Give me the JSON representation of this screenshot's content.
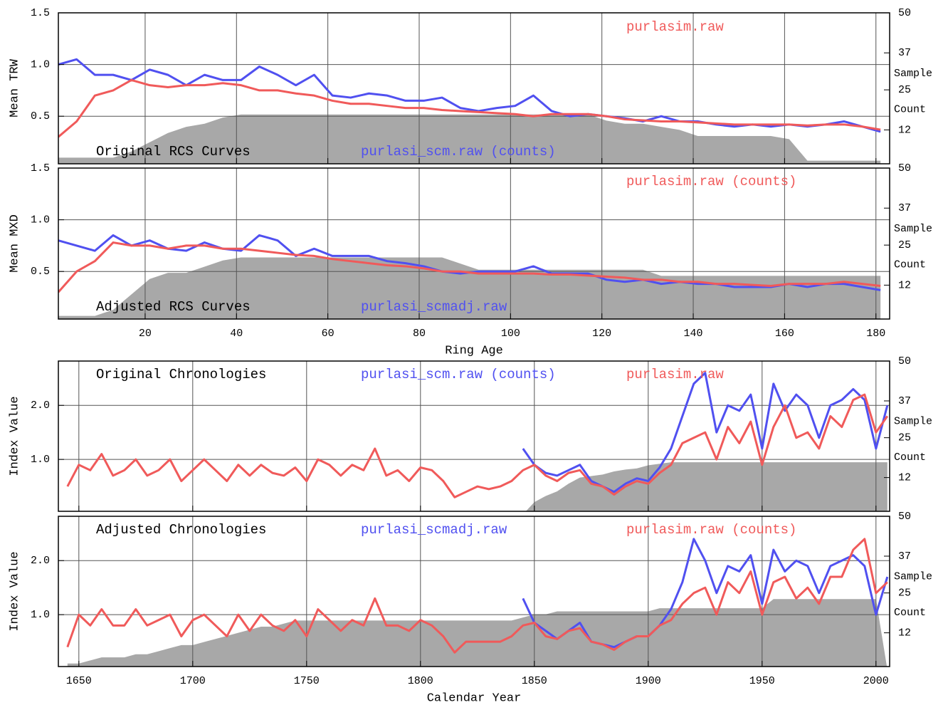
{
  "chart_data": [
    {
      "type": "line",
      "panel_label": "Original RCS Curves",
      "ylabel": "Mean TRW",
      "x": [
        1,
        5,
        9,
        13,
        17,
        21,
        25,
        29,
        33,
        37,
        41,
        45,
        49,
        53,
        57,
        61,
        65,
        69,
        73,
        77,
        81,
        85,
        89,
        93,
        97,
        101,
        105,
        109,
        113,
        117,
        121,
        125,
        129,
        133,
        137,
        141,
        145,
        149,
        153,
        157,
        161,
        165,
        169,
        173,
        177,
        181
      ],
      "series": [
        {
          "name": "purlasi_scm.raw (counts)",
          "color": "#5050f0",
          "values": [
            1.0,
            1.05,
            0.9,
            0.9,
            0.85,
            0.95,
            0.9,
            0.8,
            0.9,
            0.85,
            0.85,
            0.98,
            0.9,
            0.8,
            0.9,
            0.7,
            0.68,
            0.72,
            0.7,
            0.65,
            0.65,
            0.68,
            0.58,
            0.55,
            0.58,
            0.6,
            0.7,
            0.55,
            0.5,
            0.52,
            0.5,
            0.48,
            0.45,
            0.5,
            0.45,
            0.45,
            0.42,
            0.4,
            0.42,
            0.4,
            0.42,
            0.4,
            0.42,
            0.45,
            0.4,
            0.35
          ]
        },
        {
          "name": "purlasim.raw",
          "color": "#f05a5a",
          "values": [
            0.3,
            0.45,
            0.7,
            0.75,
            0.85,
            0.8,
            0.78,
            0.8,
            0.8,
            0.82,
            0.8,
            0.75,
            0.75,
            0.72,
            0.7,
            0.65,
            0.62,
            0.62,
            0.6,
            0.58,
            0.58,
            0.56,
            0.55,
            0.54,
            0.53,
            0.52,
            0.5,
            0.52,
            0.52,
            0.52,
            0.5,
            0.47,
            0.46,
            0.45,
            0.45,
            0.44,
            0.43,
            0.42,
            0.42,
            0.42,
            0.42,
            0.41,
            0.42,
            0.42,
            0.4,
            0.37
          ]
        },
        {
          "color": "#a8a8a8",
          "axis": "y2",
          "fill": true,
          "values": [
            3,
            3,
            3,
            3,
            5,
            8,
            11,
            13,
            14,
            16,
            17,
            17,
            17,
            17,
            17,
            17,
            17,
            17,
            17,
            17,
            17,
            17,
            17,
            17,
            17,
            17,
            17,
            17,
            17,
            17,
            15,
            14,
            14,
            13,
            12,
            10,
            10,
            10,
            10,
            10,
            9,
            2,
            2,
            2,
            2,
            2
          ]
        }
      ],
      "xlim": [
        1,
        183
      ],
      "ylim": [
        0.04,
        1.5
      ],
      "y2lim": [
        1,
        50
      ],
      "xticks": [
        20,
        40,
        60,
        80,
        100,
        120,
        140,
        160,
        180
      ],
      "xtick_labels": false,
      "yticks": [
        0.5,
        {
          "value": 1,
          "label": "1.0"
        },
        1.5
      ],
      "y2ticks": [
        12,
        25,
        37,
        50
      ],
      "y2label_lines": [
        "Sample",
        "Count"
      ],
      "grid": true
    },
    {
      "type": "line",
      "panel_label": "Adjusted RCS Curves",
      "ylabel": "Mean MXD",
      "xlabel": "Ring Age",
      "x": [
        1,
        5,
        9,
        13,
        17,
        21,
        25,
        29,
        33,
        37,
        41,
        45,
        49,
        53,
        57,
        61,
        65,
        69,
        73,
        77,
        81,
        85,
        89,
        93,
        97,
        101,
        105,
        109,
        113,
        117,
        121,
        125,
        129,
        133,
        137,
        141,
        145,
        149,
        153,
        157,
        161,
        165,
        169,
        173,
        177,
        181
      ],
      "series": [
        {
          "name": "purlasi_scmadj.raw",
          "color": "#5050f0",
          "values": [
            0.8,
            0.75,
            0.7,
            0.85,
            0.75,
            0.8,
            0.72,
            0.7,
            0.78,
            0.72,
            0.7,
            0.85,
            0.8,
            0.65,
            0.72,
            0.65,
            0.65,
            0.65,
            0.6,
            0.58,
            0.55,
            0.5,
            0.48,
            0.5,
            0.5,
            0.5,
            0.55,
            0.48,
            0.48,
            0.48,
            0.42,
            0.4,
            0.42,
            0.38,
            0.4,
            0.38,
            0.38,
            0.35,
            0.35,
            0.35,
            0.38,
            0.35,
            0.38,
            0.38,
            0.35,
            0.32
          ]
        },
        {
          "name": "purlasim.raw (counts)",
          "color": "#f05a5a",
          "values": [
            0.3,
            0.5,
            0.6,
            0.78,
            0.75,
            0.75,
            0.72,
            0.75,
            0.75,
            0.72,
            0.72,
            0.7,
            0.68,
            0.66,
            0.65,
            0.62,
            0.6,
            0.58,
            0.56,
            0.55,
            0.53,
            0.5,
            0.5,
            0.48,
            0.48,
            0.48,
            0.48,
            0.47,
            0.47,
            0.46,
            0.45,
            0.44,
            0.42,
            0.42,
            0.4,
            0.4,
            0.38,
            0.38,
            0.37,
            0.36,
            0.38,
            0.38,
            0.38,
            0.4,
            0.38,
            0.36
          ]
        },
        {
          "color": "#a8a8a8",
          "axis": "y2",
          "fill": true,
          "values": [
            2,
            2,
            2,
            4,
            9,
            14,
            16,
            16,
            18,
            20,
            21,
            21,
            21,
            21,
            21,
            21,
            21,
            21,
            21,
            21,
            21,
            21,
            19,
            17,
            17,
            17,
            17,
            17,
            17,
            17,
            17,
            17,
            17,
            15,
            15,
            15,
            15,
            15,
            15,
            15,
            15,
            15,
            15,
            15,
            15,
            15
          ]
        }
      ],
      "xlim": [
        1,
        183
      ],
      "ylim": [
        0.04,
        1.5
      ],
      "y2lim": [
        1,
        50
      ],
      "xticks": [
        20,
        40,
        60,
        80,
        100,
        120,
        140,
        160,
        180
      ],
      "xtick_labels": true,
      "yticks": [
        0.5,
        {
          "value": 1,
          "label": "1.0"
        },
        1.5
      ],
      "y2ticks": [
        12,
        25,
        37,
        50
      ],
      "y2label_lines": [
        "Sample",
        "Count"
      ],
      "grid": true
    },
    {
      "type": "line",
      "panel_label": "Original Chronologies",
      "ylabel": "Index Value",
      "x": [
        1645,
        1650,
        1655,
        1660,
        1665,
        1670,
        1675,
        1680,
        1685,
        1690,
        1695,
        1700,
        1705,
        1710,
        1715,
        1720,
        1725,
        1730,
        1735,
        1740,
        1745,
        1750,
        1755,
        1760,
        1765,
        1770,
        1775,
        1780,
        1785,
        1790,
        1795,
        1800,
        1805,
        1810,
        1815,
        1820,
        1825,
        1830,
        1835,
        1840,
        1845,
        1850,
        1855,
        1860,
        1865,
        1870,
        1875,
        1880,
        1885,
        1890,
        1895,
        1900,
        1905,
        1910,
        1915,
        1920,
        1925,
        1930,
        1935,
        1940,
        1945,
        1950,
        1955,
        1960,
        1965,
        1970,
        1975,
        1980,
        1985,
        1990,
        1995,
        2000,
        2005
      ],
      "series": [
        {
          "name": "purlasi_scm.raw (counts)",
          "color": "#5050f0",
          "values": [
            null,
            null,
            null,
            null,
            null,
            null,
            null,
            null,
            null,
            null,
            null,
            null,
            null,
            null,
            null,
            null,
            null,
            null,
            null,
            null,
            null,
            null,
            null,
            null,
            null,
            null,
            null,
            null,
            null,
            null,
            null,
            null,
            null,
            null,
            null,
            null,
            null,
            null,
            null,
            null,
            1.2,
            0.9,
            0.75,
            0.7,
            0.8,
            0.9,
            0.6,
            0.5,
            0.4,
            0.55,
            0.65,
            0.6,
            0.85,
            1.2,
            1.8,
            2.4,
            2.6,
            1.5,
            2.0,
            1.9,
            2.2,
            1.2,
            2.4,
            1.9,
            2.2,
            2.0,
            1.4,
            2.0,
            2.1,
            2.3,
            2.1,
            1.2,
            2.0
          ]
        },
        {
          "name": "purlasim.raw",
          "color": "#f05a5a",
          "values": [
            0.5,
            0.9,
            0.8,
            1.1,
            0.7,
            0.8,
            1.0,
            0.7,
            0.8,
            1.0,
            0.6,
            0.8,
            1.0,
            0.8,
            0.6,
            0.9,
            0.7,
            0.9,
            0.75,
            0.7,
            0.85,
            0.6,
            1.0,
            0.9,
            0.7,
            0.9,
            0.8,
            1.2,
            0.7,
            0.8,
            0.6,
            0.85,
            0.8,
            0.6,
            0.3,
            0.4,
            0.5,
            0.45,
            0.5,
            0.6,
            0.8,
            0.9,
            0.7,
            0.6,
            0.75,
            0.8,
            0.55,
            0.5,
            0.35,
            0.5,
            0.6,
            0.55,
            0.75,
            0.9,
            1.3,
            1.4,
            1.5,
            1.0,
            1.6,
            1.3,
            1.7,
            0.9,
            1.6,
            2.0,
            1.4,
            1.5,
            1.2,
            1.8,
            1.6,
            2.1,
            2.2,
            1.5,
            1.8
          ]
        },
        {
          "color": "#a8a8a8",
          "axis": "y2",
          "fill": true,
          "values": [
            0,
            0,
            0,
            0,
            0,
            0,
            0,
            0,
            0,
            0,
            0,
            0,
            0,
            0,
            0,
            0,
            0,
            0,
            0,
            0,
            0,
            0,
            0,
            0,
            0,
            0,
            0,
            0,
            0,
            0,
            0,
            0,
            0,
            0,
            0,
            0,
            0,
            0,
            0,
            0,
            0,
            4,
            6,
            7.5,
            10,
            12,
            12.5,
            13,
            14,
            14.6,
            15,
            16,
            16.5,
            17,
            17,
            17,
            17,
            17,
            17,
            17,
            17,
            17,
            17,
            17,
            17,
            17,
            17,
            17,
            17,
            17,
            17,
            17,
            17
          ]
        }
      ],
      "xlim": [
        1641,
        2006
      ],
      "ylim": [
        0.04,
        2.82
      ],
      "y2lim": [
        1,
        50
      ],
      "xticks": [
        1650,
        1700,
        1750,
        1800,
        1850,
        1900,
        1950,
        2000
      ],
      "xtick_labels": false,
      "yticks": [
        {
          "value": 1,
          "label": "1.0"
        },
        {
          "value": 2,
          "label": "2.0"
        }
      ],
      "y2ticks": [
        12,
        25,
        37,
        50
      ],
      "y2label_lines": [
        "Sample",
        "Count"
      ],
      "grid": true
    },
    {
      "type": "line",
      "panel_label": "Adjusted Chronologies",
      "ylabel": "Index Value",
      "xlabel": "Calendar Year",
      "x": [
        1645,
        1650,
        1655,
        1660,
        1665,
        1670,
        1675,
        1680,
        1685,
        1690,
        1695,
        1700,
        1705,
        1710,
        1715,
        1720,
        1725,
        1730,
        1735,
        1740,
        1745,
        1750,
        1755,
        1760,
        1765,
        1770,
        1775,
        1780,
        1785,
        1790,
        1795,
        1800,
        1805,
        1810,
        1815,
        1820,
        1825,
        1830,
        1835,
        1840,
        1845,
        1850,
        1855,
        1860,
        1865,
        1870,
        1875,
        1880,
        1885,
        1890,
        1895,
        1900,
        1905,
        1910,
        1915,
        1920,
        1925,
        1930,
        1935,
        1940,
        1945,
        1950,
        1955,
        1960,
        1965,
        1970,
        1975,
        1980,
        1985,
        1990,
        1995,
        2000,
        2005
      ],
      "series": [
        {
          "name": "purlasi_scmadj.raw",
          "color": "#5050f0",
          "values": [
            null,
            null,
            null,
            null,
            null,
            null,
            null,
            null,
            null,
            null,
            null,
            null,
            null,
            null,
            null,
            null,
            null,
            null,
            null,
            null,
            null,
            null,
            null,
            null,
            null,
            null,
            null,
            null,
            null,
            null,
            null,
            null,
            null,
            null,
            null,
            null,
            null,
            null,
            null,
            null,
            1.3,
            0.85,
            0.7,
            0.55,
            0.7,
            0.85,
            0.5,
            0.45,
            0.4,
            0.5,
            0.6,
            0.6,
            0.8,
            1.1,
            1.6,
            2.4,
            2.0,
            1.4,
            1.9,
            1.8,
            2.1,
            1.2,
            2.2,
            1.8,
            2.0,
            1.9,
            1.4,
            1.9,
            2.0,
            2.1,
            1.9,
            1.0,
            1.7
          ]
        },
        {
          "name": "purlasim.raw (counts)",
          "color": "#f05a5a",
          "values": [
            0.4,
            1.0,
            0.8,
            1.1,
            0.8,
            0.8,
            1.1,
            0.8,
            0.9,
            1.0,
            0.6,
            0.9,
            1.0,
            0.8,
            0.6,
            1.0,
            0.7,
            1.0,
            0.8,
            0.7,
            0.9,
            0.6,
            1.1,
            0.9,
            0.7,
            0.9,
            0.8,
            1.3,
            0.8,
            0.8,
            0.7,
            0.9,
            0.8,
            0.6,
            0.3,
            0.5,
            0.5,
            0.5,
            0.5,
            0.6,
            0.8,
            0.85,
            0.6,
            0.55,
            0.7,
            0.75,
            0.5,
            0.45,
            0.35,
            0.5,
            0.6,
            0.6,
            0.8,
            0.9,
            1.2,
            1.4,
            1.5,
            1.0,
            1.6,
            1.4,
            1.8,
            1.0,
            1.6,
            1.7,
            1.3,
            1.5,
            1.2,
            1.7,
            1.7,
            2.2,
            2.4,
            1.4,
            1.6
          ]
        },
        {
          "color": "#a8a8a8",
          "axis": "y2",
          "fill": true,
          "values": [
            2,
            2,
            3,
            4,
            4,
            4,
            5,
            5,
            6,
            7,
            8,
            8,
            9,
            10,
            11,
            12,
            13,
            14,
            14,
            15,
            16,
            16,
            16,
            16,
            16,
            16,
            16,
            16,
            16,
            16,
            16,
            16,
            16,
            16,
            16,
            16,
            16,
            16,
            16,
            16,
            17,
            18,
            18,
            19,
            19,
            19,
            19,
            19,
            19,
            19,
            19,
            19,
            20,
            20,
            20,
            20,
            20,
            20,
            20,
            20,
            20,
            20,
            23,
            23,
            23,
            23,
            23,
            23,
            23,
            23,
            23,
            23,
            0
          ]
        }
      ],
      "xlim": [
        1641,
        2006
      ],
      "ylim": [
        0.04,
        2.82
      ],
      "y2lim": [
        1,
        50
      ],
      "xticks": [
        1650,
        1700,
        1750,
        1800,
        1850,
        1900,
        1950,
        2000
      ],
      "xtick_labels": true,
      "yticks": [
        {
          "value": 1,
          "label": "1.0"
        },
        {
          "value": 2,
          "label": "2.0"
        }
      ],
      "y2ticks": [
        12,
        25,
        37,
        50
      ],
      "y2label_lines": [
        "Sample",
        "Count"
      ],
      "grid": true
    }
  ]
}
